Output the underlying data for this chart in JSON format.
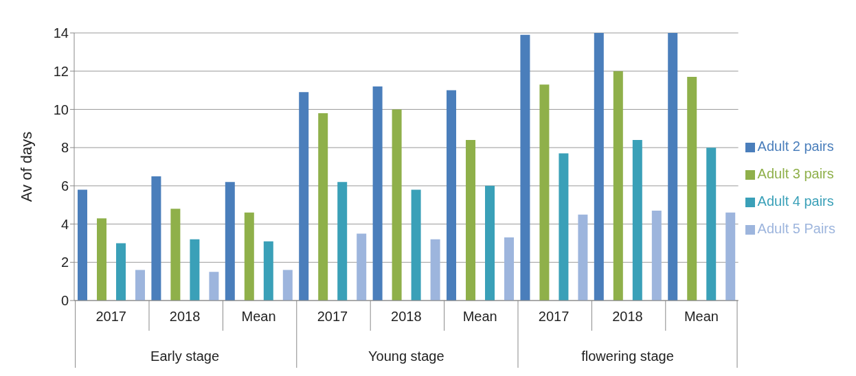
{
  "chart_data": {
    "type": "bar",
    "ylabel": "Av of days",
    "categories": [
      "2017",
      "2018",
      "Mean",
      "2017",
      "2018",
      "Mean",
      "2017",
      "2018",
      "Mean"
    ],
    "annotations": [
      "Early stage",
      "Young stage",
      "flowering stage"
    ],
    "series": [
      {
        "name": "Adult 2 pairs",
        "color": "#4a7ebb",
        "values": [
          5.8,
          6.5,
          6.2,
          10.9,
          11.2,
          11.0,
          13.9,
          14.0,
          14.0
        ]
      },
      {
        "name": "Adult 3 pairs",
        "color": "#8fb04a",
        "values": [
          4.3,
          4.8,
          4.6,
          9.8,
          10.0,
          8.4,
          11.3,
          12.0,
          11.7
        ]
      },
      {
        "name": "Adult 4 pairs",
        "color": "#3aa0b8",
        "values": [
          3.0,
          3.2,
          3.1,
          6.2,
          5.8,
          6.0,
          7.7,
          8.4,
          8.0
        ]
      },
      {
        "name": "Adult 5 Pairs",
        "color": "#9db5dd",
        "values": [
          1.6,
          1.5,
          1.6,
          3.5,
          3.2,
          3.3,
          4.5,
          4.7,
          4.6
        ]
      }
    ],
    "ylim": [
      0,
      14
    ],
    "yticks": [
      0,
      2,
      4,
      6,
      8,
      10,
      12,
      14
    ],
    "grid": "y",
    "legend": "right"
  }
}
